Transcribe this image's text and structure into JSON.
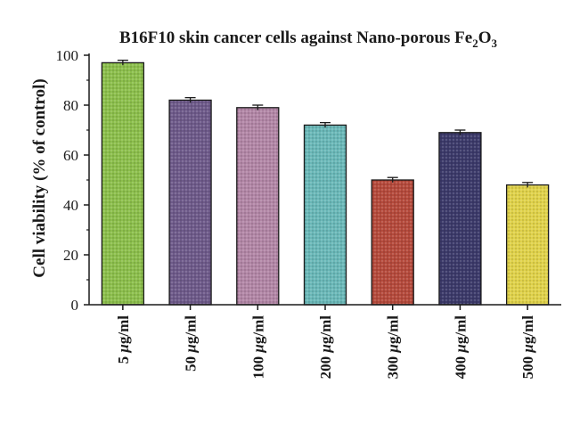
{
  "chart_data": {
    "type": "bar",
    "title": {
      "main": "B16F10 skin cancer cells against Nano-porous Fe",
      "sub1": "2",
      "mid": "O",
      "sub2": "3"
    },
    "ylabel": "Cell viability (% of control)",
    "xlabel": "",
    "ylim": [
      0,
      100
    ],
    "yticks": [
      "0",
      "20",
      "40",
      "60",
      "80",
      "100"
    ],
    "categories": [
      {
        "num": "5 ",
        "unit_mu": "μ",
        "unit_rest": "g/ml"
      },
      {
        "num": "50 ",
        "unit_mu": "μ",
        "unit_rest": "g/ml"
      },
      {
        "num": "100 ",
        "unit_mu": "μ",
        "unit_rest": "g/ml"
      },
      {
        "num": "200 ",
        "unit_mu": "μ",
        "unit_rest": "g/ml"
      },
      {
        "num": "300 ",
        "unit_mu": "μ",
        "unit_rest": "g/ml"
      },
      {
        "num": "400 ",
        "unit_mu": "μ",
        "unit_rest": "g/ml"
      },
      {
        "num": "500 ",
        "unit_mu": "μ",
        "unit_rest": "g/ml"
      }
    ],
    "values": [
      97,
      82,
      79,
      72,
      50,
      69,
      48
    ],
    "errors": [
      1,
      1,
      1,
      1,
      1,
      1,
      1
    ],
    "colors": [
      "#8cbf4c",
      "#6e5a8a",
      "#b286a6",
      "#6ab8b8",
      "#b54a3c",
      "#3c3a6a",
      "#e0d24a"
    ],
    "grid": false,
    "legend": "none"
  }
}
